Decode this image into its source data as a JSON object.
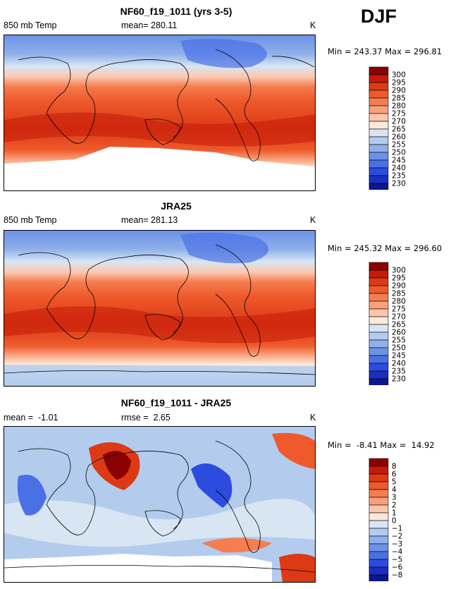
{
  "season": "DJF",
  "chart_data": [
    {
      "type": "heatmap",
      "title": "NF60_f19_1011 (yrs 3-5)",
      "left_label": "850 mb Temp",
      "center_label": "mean= 280.11",
      "right_label": "K",
      "minmax": "Min = 243.37 Max = 296.81",
      "colorbar_levels": [
        "300",
        "295",
        "290",
        "285",
        "280",
        "275",
        "270",
        "265",
        "260",
        "255",
        "250",
        "245",
        "240",
        "235",
        "230"
      ],
      "colorbar_colors": [
        "#8b0000",
        "#c41a0a",
        "#dc3a14",
        "#ee5a2c",
        "#f57d50",
        "#f9a07c",
        "#fcc6ad",
        "#fde8d9",
        "#d8e6f4",
        "#b3ccee",
        "#8fb0ea",
        "#6c92e8",
        "#4a70e6",
        "#2c4ce0",
        "#1a2ec4",
        "#0c178c"
      ],
      "data_min": 243.37,
      "data_max": 296.81
    },
    {
      "type": "heatmap",
      "title": "JRA25",
      "left_label": "850 mb Temp",
      "center_label": "mean= 281.13",
      "right_label": "K",
      "minmax": "Min = 245.32 Max = 296.60",
      "colorbar_levels": [
        "300",
        "295",
        "290",
        "285",
        "280",
        "275",
        "270",
        "265",
        "260",
        "255",
        "250",
        "245",
        "240",
        "235",
        "230"
      ],
      "colorbar_colors": [
        "#8b0000",
        "#c41a0a",
        "#dc3a14",
        "#ee5a2c",
        "#f57d50",
        "#f9a07c",
        "#fcc6ad",
        "#fde8d9",
        "#d8e6f4",
        "#b3ccee",
        "#8fb0ea",
        "#6c92e8",
        "#4a70e6",
        "#2c4ce0",
        "#1a2ec4",
        "#0c178c"
      ],
      "data_min": 245.32,
      "data_max": 296.6
    },
    {
      "type": "heatmap",
      "title": "NF60_f19_1011 - JRA25",
      "left_label": "mean =  -1.01",
      "center_label": "rmse =  2.65",
      "right_label": "K",
      "minmax": "Min =  -8.41 Max =  14.92",
      "colorbar_levels": [
        "8",
        "6",
        "5",
        "4",
        "3",
        "2",
        "1",
        "0",
        "−1",
        "−2",
        "−3",
        "−4",
        "−5",
        "−6",
        "−8"
      ],
      "colorbar_colors": [
        "#8b0000",
        "#c41a0a",
        "#dc3a14",
        "#ee5a2c",
        "#f57d50",
        "#f9a07c",
        "#fcc6ad",
        "#fde8d9",
        "#d8e6f4",
        "#b3ccee",
        "#8fb0ea",
        "#6c92e8",
        "#4a70e6",
        "#2c4ce0",
        "#1a2ec4",
        "#0c178c"
      ],
      "data_min": -8.41,
      "data_max": 14.92
    }
  ]
}
